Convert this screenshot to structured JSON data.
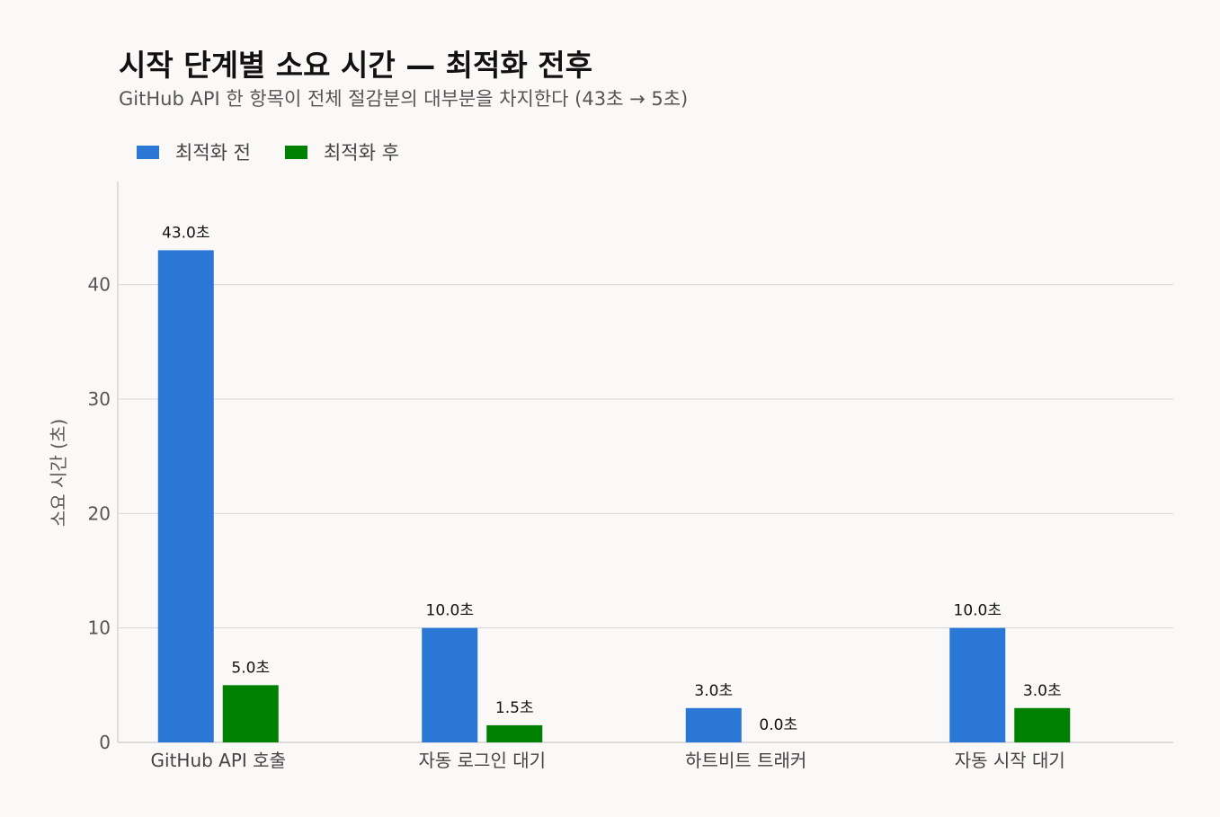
{
  "chart_data": {
    "type": "bar",
    "title": "시작 단계별 소요 시간 — 최적화 전후",
    "subtitle": "GitHub API 한 항목이 전체 절감분의 대부분을 차지한다 (43초 → 5초)",
    "xlabel": "",
    "ylabel": "소요 시간 (초)",
    "categories": [
      "GitHub API 호출",
      "자동 로그인 대기",
      "하트비트 트래커",
      "자동 시작 대기"
    ],
    "series": [
      {
        "name": "최적화 전",
        "values": [
          43.0,
          10.0,
          3.0,
          10.0
        ],
        "color": "#2a77d6",
        "labels": [
          "43.0초",
          "10.0초",
          "3.0초",
          "10.0초"
        ]
      },
      {
        "name": "최적화 후",
        "values": [
          5.0,
          1.5,
          0.0,
          3.0
        ],
        "color": "#008000",
        "labels": [
          "5.0초",
          "1.5초",
          "0.0초",
          "3.0초"
        ]
      }
    ],
    "ylim": [
      0,
      49
    ],
    "yticks": [
      0,
      10,
      20,
      30,
      40
    ],
    "ytick_labels": [
      "0",
      "10",
      "20",
      "30",
      "40"
    ],
    "grid": true,
    "legend_position": "top-left"
  }
}
